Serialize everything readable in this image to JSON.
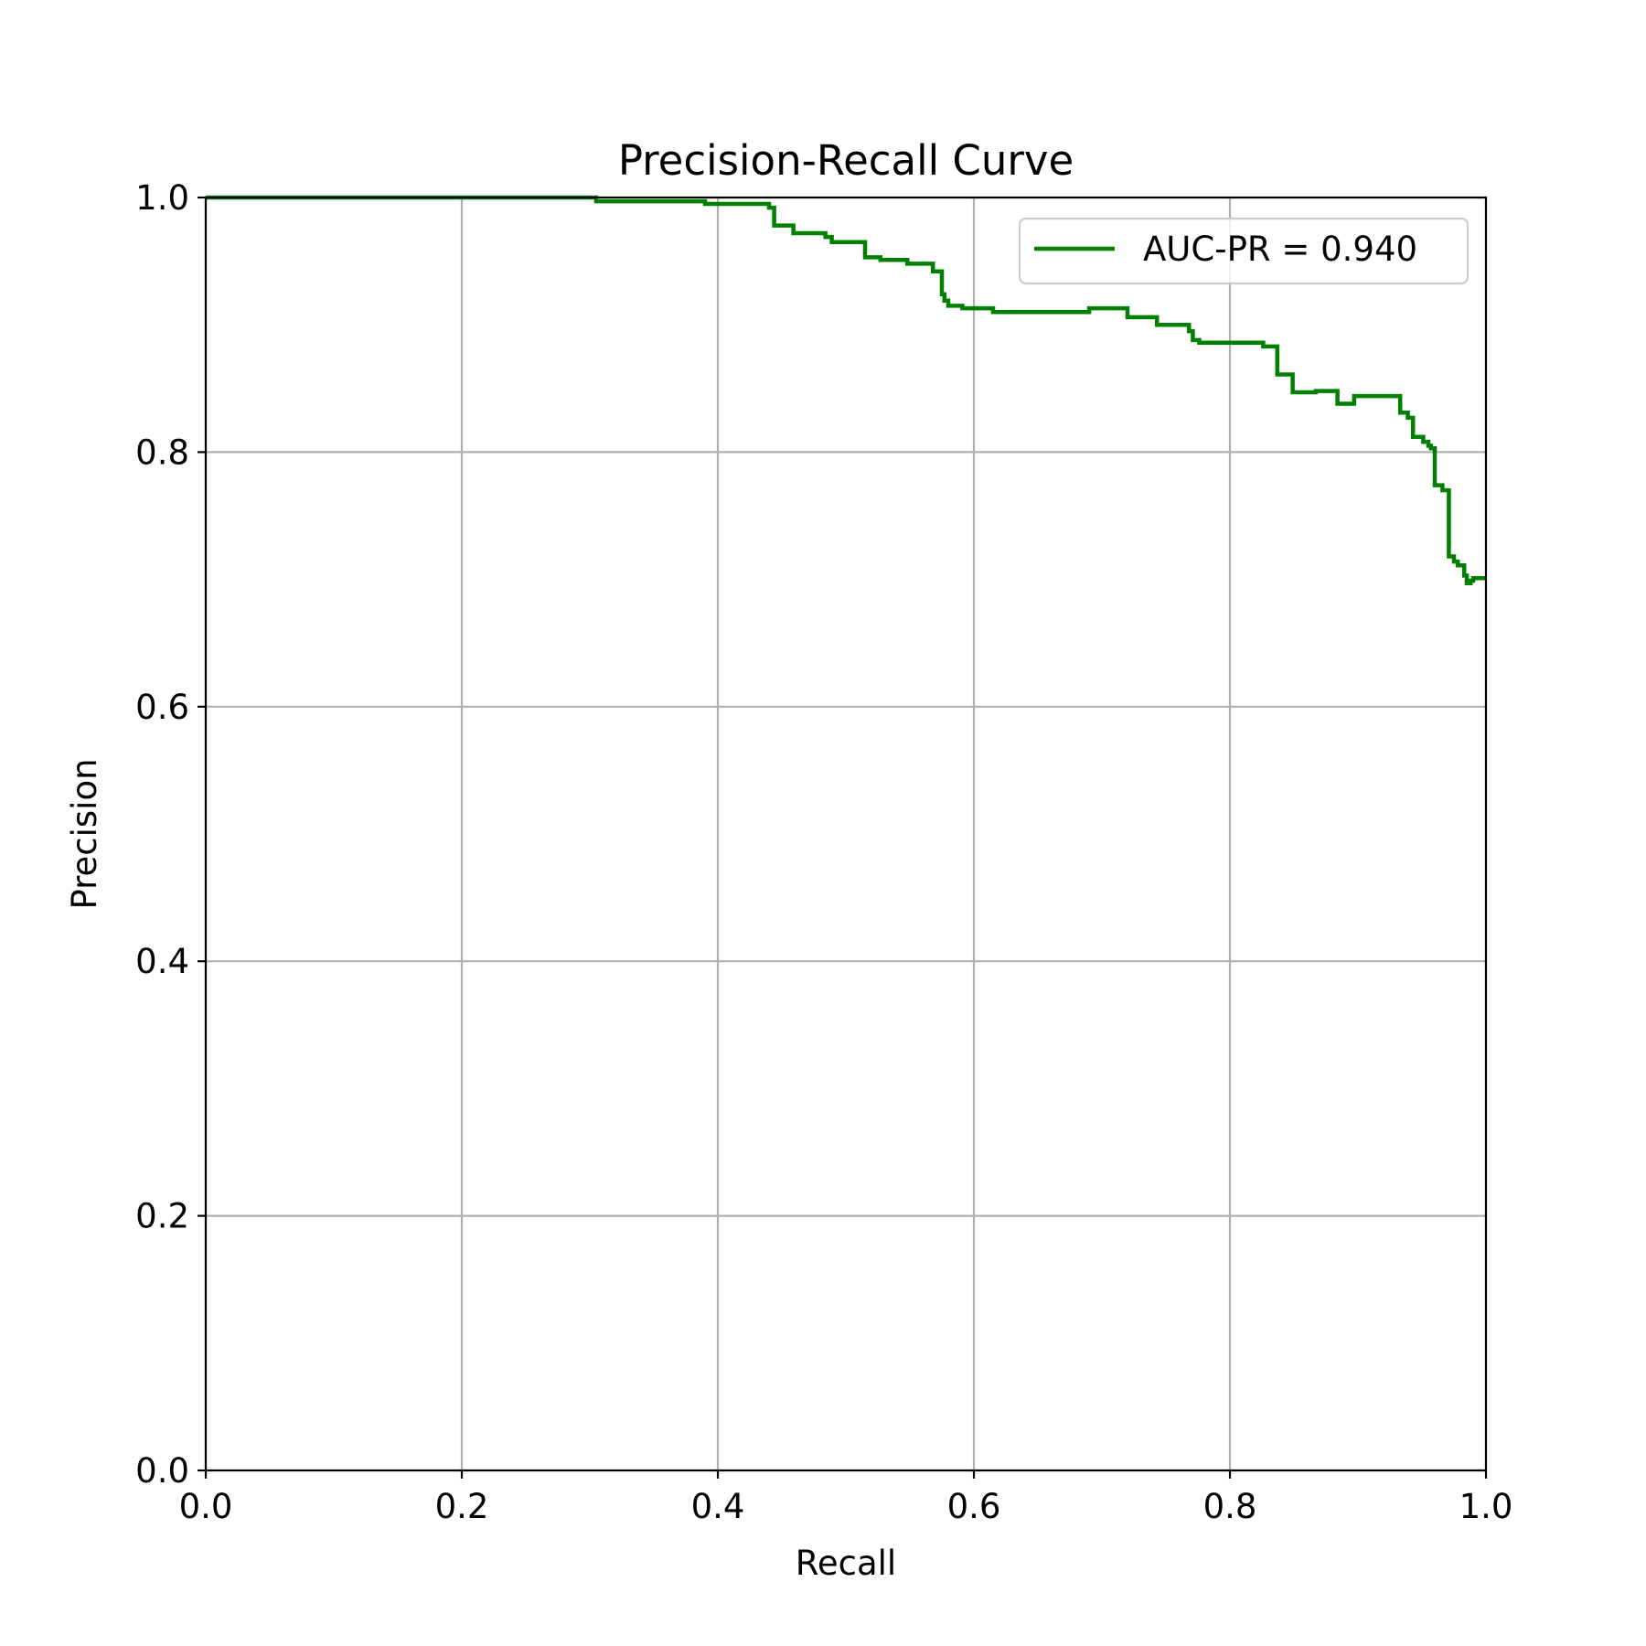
{
  "chart_data": {
    "type": "line",
    "title": "Precision-Recall Curve",
    "xlabel": "Recall",
    "ylabel": "Precision",
    "xlim": [
      0,
      1
    ],
    "ylim": [
      0,
      1
    ],
    "xticks": [
      "0.0",
      "0.2",
      "0.4",
      "0.6",
      "0.8",
      "1.0"
    ],
    "yticks": [
      "0.0",
      "0.2",
      "0.4",
      "0.6",
      "0.8",
      "1.0"
    ],
    "grid": true,
    "legend_position": "top-right",
    "series": [
      {
        "name": "AUC-PR = 0.940",
        "color": "#008000",
        "step": true,
        "x": [
          0.0,
          0.305,
          0.305,
          0.39,
          0.39,
          0.44,
          0.44,
          0.444,
          0.444,
          0.459,
          0.459,
          0.484,
          0.484,
          0.489,
          0.489,
          0.515,
          0.515,
          0.527,
          0.527,
          0.548,
          0.548,
          0.568,
          0.568,
          0.575,
          0.575,
          0.577,
          0.577,
          0.58,
          0.58,
          0.591,
          0.591,
          0.615,
          0.615,
          0.69,
          0.69,
          0.72,
          0.72,
          0.743,
          0.743,
          0.768,
          0.768,
          0.771,
          0.771,
          0.776,
          0.776,
          0.826,
          0.826,
          0.837,
          0.837,
          0.849,
          0.849,
          0.867,
          0.867,
          0.884,
          0.884,
          0.897,
          0.897,
          0.933,
          0.933,
          0.939,
          0.939,
          0.943,
          0.943,
          0.951,
          0.951,
          0.955,
          0.955,
          0.957,
          0.957,
          0.96,
          0.96,
          0.966,
          0.966,
          0.971,
          0.971,
          0.975,
          0.975,
          0.978,
          0.978,
          0.983,
          0.983,
          0.985,
          0.985,
          0.988,
          0.988,
          0.99,
          0.99,
          1.0
        ],
        "y": [
          1.0,
          1.0,
          0.997,
          0.997,
          0.995,
          0.995,
          0.992,
          0.992,
          0.978,
          0.978,
          0.972,
          0.972,
          0.969,
          0.969,
          0.965,
          0.965,
          0.953,
          0.953,
          0.951,
          0.951,
          0.948,
          0.948,
          0.942,
          0.942,
          0.924,
          0.924,
          0.919,
          0.919,
          0.915,
          0.915,
          0.913,
          0.913,
          0.91,
          0.91,
          0.913,
          0.913,
          0.906,
          0.906,
          0.9,
          0.9,
          0.895,
          0.895,
          0.888,
          0.888,
          0.886,
          0.886,
          0.883,
          0.883,
          0.861,
          0.861,
          0.847,
          0.847,
          0.848,
          0.848,
          0.838,
          0.838,
          0.844,
          0.844,
          0.831,
          0.831,
          0.827,
          0.827,
          0.812,
          0.812,
          0.808,
          0.808,
          0.805,
          0.805,
          0.803,
          0.803,
          0.774,
          0.774,
          0.77,
          0.77,
          0.718,
          0.718,
          0.714,
          0.714,
          0.711,
          0.711,
          0.703,
          0.703,
          0.697,
          0.697,
          0.699,
          0.699,
          0.701,
          0.701
        ]
      }
    ]
  }
}
